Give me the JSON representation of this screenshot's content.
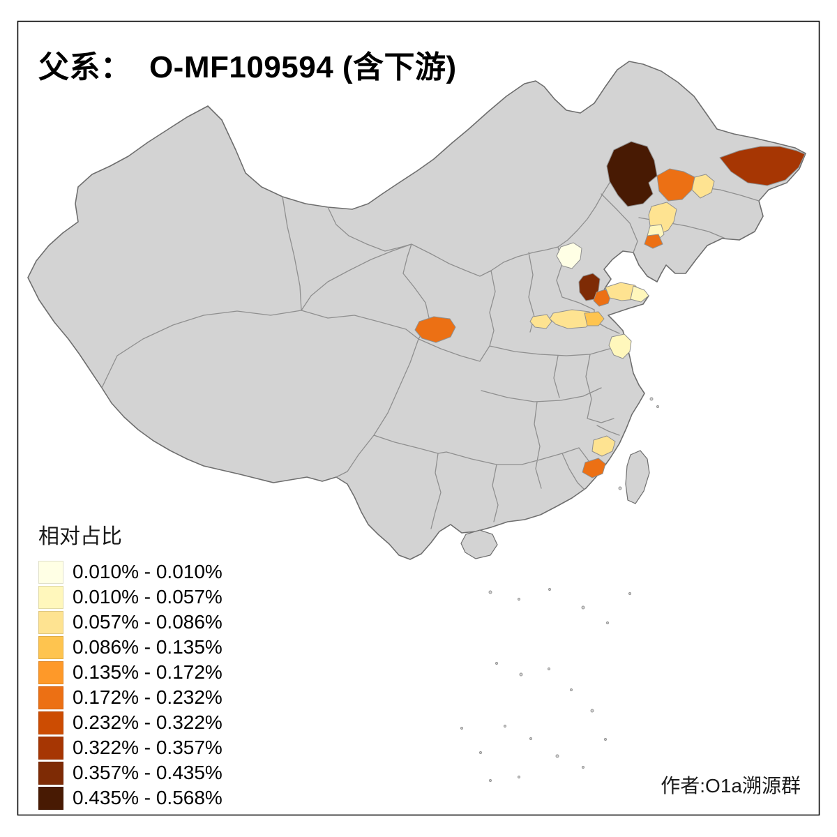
{
  "title": "父系：  O-MF109594 (含下游)",
  "credit": "作者:O1a溯源群",
  "legend": {
    "title": "相对占比",
    "entries": [
      {
        "label": "0.010% - 0.010%",
        "color": "#FFFFE5"
      },
      {
        "label": "0.010% - 0.057%",
        "color": "#FFF7BC"
      },
      {
        "label": "0.057% - 0.086%",
        "color": "#FEE391"
      },
      {
        "label": "0.086% - 0.135%",
        "color": "#FEC44F"
      },
      {
        "label": "0.135% - 0.172%",
        "color": "#FE9929"
      },
      {
        "label": "0.172% - 0.232%",
        "color": "#EC7014"
      },
      {
        "label": "0.232% - 0.322%",
        "color": "#CC4C02"
      },
      {
        "label": "0.322% - 0.357%",
        "color": "#A63603"
      },
      {
        "label": "0.357% - 0.435%",
        "color": "#7E2B05"
      },
      {
        "label": "0.435% - 0.568%",
        "color": "#481A03"
      }
    ]
  },
  "map": {
    "land_color": "#D3D3D3",
    "boundary_color": "#8F8F8F",
    "outline_color": "#6E6E6E",
    "sea_color": "#FFFFFF"
  }
}
